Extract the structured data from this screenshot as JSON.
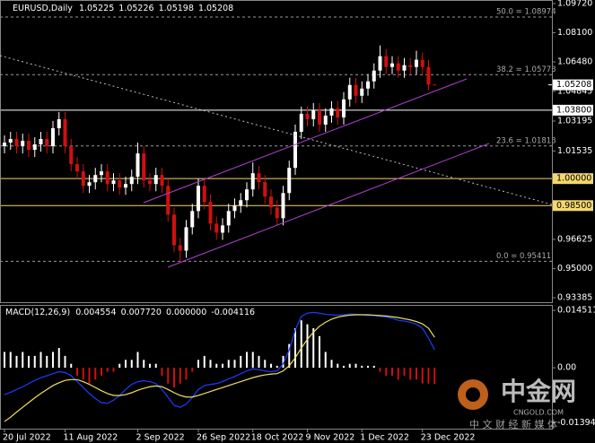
{
  "chart_data": [
    {
      "type": "candlestick",
      "symbol": "EURUSD,Daily",
      "up_color": "#ffffff",
      "down_color": "#d01010",
      "ylim": [
        0.93136,
        1.09919
      ],
      "yticks": [
        {
          "value": 1.0972,
          "label": "1.09720"
        },
        {
          "value": 1.081,
          "label": "1.08100"
        },
        {
          "value": 1.0648,
          "label": "1.06480"
        },
        1.04845,
        1.03195,
        1.01535,
        0.96625,
        {
          "value": 0.95,
          "label": "0.95000"
        },
        0.93385
      ],
      "xticks": [
        {
          "value": 0,
          "label": "20 Jul 2022"
        },
        {
          "value": 10,
          "label": "11 Aug 2022"
        },
        {
          "value": 22,
          "label": "2 Sep 2022"
        },
        {
          "value": 32,
          "label": "26 Sep 2022"
        },
        {
          "value": 41,
          "label": "18 Oct 2022"
        },
        {
          "value": 50,
          "label": "9 Nov 2022"
        },
        {
          "value": 59,
          "label": "1 Dec 2022"
        },
        {
          "value": 69,
          "label": "23 Dec 2022"
        }
      ],
      "open": [
        1.018,
        1.02,
        1.022,
        1.018,
        1.021,
        1.016,
        1.019,
        1.022,
        1.018,
        1.028,
        1.033,
        1.018,
        1.008,
        1.004,
        0.996,
        0.998,
        1.002,
        1.004,
        0.997,
        0.999,
        0.995,
        0.997,
        1.001,
        1.014,
        0.999,
        0.997,
        1.002,
        0.996,
        0.98,
        0.963,
        0.96,
        0.973,
        0.982,
        0.996,
        0.987,
        0.975,
        0.97,
        0.974,
        0.982,
        0.985,
        0.988,
        0.994,
        1.003,
        0.998,
        0.99,
        0.984,
        0.978,
        0.992,
        1.006,
        1.026,
        1.036,
        1.033,
        1.038,
        1.03,
        1.035,
        1.039,
        1.034,
        1.044,
        1.052,
        1.046,
        1.05,
        1.054,
        1.06,
        1.068,
        1.062,
        1.064,
        1.06,
        1.063,
        1.062,
        1.066,
        1.062,
        1.05225
      ],
      "high": [
        1.024,
        1.026,
        1.026,
        1.025,
        1.025,
        1.023,
        1.026,
        1.026,
        1.032,
        1.037,
        1.037,
        1.022,
        1.012,
        1.008,
        1.002,
        1.006,
        1.008,
        1.008,
        1.003,
        1.003,
        1.001,
        1.005,
        1.02,
        1.018,
        1.003,
        1.006,
        1.006,
        1.0,
        0.984,
        0.967,
        0.977,
        0.986,
        1.0,
        1.0,
        0.991,
        0.979,
        0.978,
        0.986,
        0.989,
        0.992,
        0.998,
        1.009,
        1.007,
        1.002,
        0.994,
        0.988,
        0.996,
        1.01,
        1.03,
        1.04,
        1.04,
        1.042,
        1.042,
        1.039,
        1.043,
        1.043,
        1.048,
        1.056,
        1.056,
        1.054,
        1.058,
        1.064,
        1.074,
        1.072,
        1.068,
        1.068,
        1.067,
        1.067,
        1.071,
        1.07,
        1.066,
        1.05226
      ],
      "low": [
        1.014,
        1.016,
        1.014,
        1.014,
        1.012,
        1.012,
        1.015,
        1.014,
        1.014,
        1.024,
        1.014,
        1.004,
        1.0,
        0.992,
        0.992,
        0.994,
        0.998,
        0.993,
        0.993,
        0.991,
        0.991,
        0.993,
        0.997,
        0.995,
        0.993,
        0.993,
        0.992,
        0.976,
        0.959,
        0.954,
        0.956,
        0.969,
        0.978,
        0.983,
        0.971,
        0.966,
        0.966,
        0.97,
        0.978,
        0.981,
        0.984,
        0.99,
        0.994,
        0.986,
        0.98,
        0.974,
        0.974,
        0.988,
        1.002,
        1.022,
        1.029,
        1.029,
        1.026,
        1.026,
        1.031,
        1.03,
        1.03,
        1.04,
        1.042,
        1.042,
        1.046,
        1.05,
        1.056,
        1.058,
        1.058,
        1.056,
        1.056,
        1.058,
        1.058,
        1.058,
        1.049,
        1.05198
      ],
      "close": [
        1.02,
        1.022,
        1.018,
        1.021,
        1.016,
        1.019,
        1.022,
        1.018,
        1.028,
        1.033,
        1.018,
        1.008,
        1.004,
        0.996,
        0.998,
        1.002,
        1.004,
        0.997,
        0.999,
        0.995,
        0.997,
        1.001,
        1.014,
        0.999,
        0.997,
        1.002,
        0.996,
        0.98,
        0.963,
        0.96,
        0.973,
        0.982,
        0.996,
        0.987,
        0.975,
        0.97,
        0.974,
        0.982,
        0.985,
        0.988,
        0.994,
        1.003,
        0.998,
        0.99,
        0.984,
        0.978,
        0.992,
        1.006,
        1.026,
        1.036,
        1.033,
        1.038,
        1.03,
        1.035,
        1.039,
        1.034,
        1.044,
        1.052,
        1.046,
        1.05,
        1.054,
        1.06,
        1.068,
        1.062,
        1.064,
        1.06,
        1.063,
        1.062,
        1.066,
        1.062,
        1.05225,
        1.05208
      ],
      "fib_levels": [
        {
          "value": 1.08974,
          "label": "50.0 = 1.08974"
        },
        {
          "value": 1.05773,
          "label": "38.2 = 1.05773"
        },
        {
          "value": 1.01813,
          "label": "23.6 = 1.01813"
        },
        {
          "value": 0.95411,
          "label": "0.0 = 0.95411"
        }
      ],
      "price_lines": [
        {
          "value": 1.038,
          "label": "1.03800",
          "color": "#ffffff"
        },
        {
          "value": 1,
          "label": "1.00000",
          "color": "#f5d76e"
        },
        {
          "value": 0.985,
          "label": "0.98500",
          "color": "#f5d76e"
        }
      ],
      "current_price": {
        "value": 1.05208,
        "label": "1.05208"
      },
      "watermark": {
        "title": "中金网",
        "site": "CNGOLD.COM",
        "tagline": "中 文 财 经 新 媒 体"
      }
    },
    {
      "type": "macd",
      "name": "MACD(12,26,9)",
      "header_values": [
        0.004554,
        {
          "value": 0.00772,
          "label": "0.007720"
        },
        {
          "value": 0,
          "label": "0.000000"
        },
        -0.004116
      ],
      "ylim": [
        -0.0154,
        0.0159
      ],
      "yticks": [
        0.014511,
        {
          "value": 0,
          "label": "0.00"
        },
        -0.013947
      ],
      "up_color": "#ffffff",
      "down_color": "#d01010",
      "histogram": [
        0.004,
        0.004,
        0.003,
        0.004,
        0.003,
        0.003,
        0.004,
        0.003,
        0.004,
        0.005,
        0.003,
        0.001,
        -0.002,
        -0.003,
        -0.004,
        -0.003,
        -0.002,
        -0.001,
        -0.001,
        0.001,
        0.002,
        0.002,
        0.004,
        0.002,
        0.001,
        0.001,
        -0.002,
        -0.004,
        -0.005,
        -0.004,
        -0.003,
        -0.001,
        0.002,
        0.003,
        0.002,
        0.001,
        0.001,
        0.002,
        0.002,
        0.003,
        0.004,
        0.004,
        0.003,
        0.002,
        0.001,
        0.0005,
        0.003,
        0.006,
        0.01,
        0.012,
        0.011,
        0.01,
        0.008,
        0.004,
        0.002,
        0.001,
        0.0005,
        0.001,
        0.001,
        0.0005,
        0.0005,
        0.0005,
        -0.001,
        -0.002,
        -0.002,
        -0.003,
        -0.002,
        -0.003,
        -0.003,
        -0.004,
        -0.004,
        -0.004116
      ],
      "series": [
        {
          "name": "MACD",
          "color": "#1e3cff",
          "values": [
            -0.0068,
            -0.0062,
            -0.0055,
            -0.0048,
            -0.004,
            -0.0032,
            -0.0025,
            -0.002,
            -0.0015,
            -0.001,
            -0.0012,
            -0.002,
            -0.0035,
            -0.005,
            -0.0065,
            -0.0078,
            -0.0088,
            -0.009,
            -0.0082,
            -0.007,
            -0.0055,
            -0.0042,
            -0.0035,
            -0.0033,
            -0.0035,
            -0.004,
            -0.0055,
            -0.0075,
            -0.0095,
            -0.01,
            -0.0092,
            -0.0075,
            -0.0055,
            -0.0045,
            -0.0042,
            -0.004,
            -0.0035,
            -0.0028,
            -0.0022,
            -0.0015,
            -0.0008,
            -0.0003,
            -0.0005,
            -0.0008,
            -0.001,
            -0.0008,
            0.001,
            0.0045,
            0.0095,
            0.013,
            0.0138,
            0.014,
            0.0138,
            0.0135,
            0.0134,
            0.0133,
            0.0134,
            0.0136,
            0.0135,
            0.0134,
            0.0132,
            0.0132,
            0.013,
            0.0128,
            0.0125,
            0.012,
            0.0118,
            0.0115,
            0.011,
            0.01,
            0.0075,
            0.004554
          ]
        },
        {
          "name": "Signal",
          "color": "#f0e060",
          "values": [
            -0.0136,
            -0.0125,
            -0.0112,
            -0.01,
            -0.0088,
            -0.0076,
            -0.0065,
            -0.0055,
            -0.0045,
            -0.0038,
            -0.0032,
            -0.003,
            -0.003,
            -0.0035,
            -0.0042,
            -0.005,
            -0.0058,
            -0.0065,
            -0.007,
            -0.007,
            -0.0068,
            -0.0063,
            -0.0057,
            -0.0052,
            -0.0048,
            -0.0046,
            -0.0048,
            -0.0055,
            -0.0063,
            -0.007,
            -0.0074,
            -0.0074,
            -0.007,
            -0.0065,
            -0.006,
            -0.0055,
            -0.005,
            -0.0045,
            -0.004,
            -0.0035,
            -0.003,
            -0.0025,
            -0.0021,
            -0.0018,
            -0.0016,
            -0.0015,
            -0.0008,
            0.0005,
            0.0025,
            0.005,
            0.0072,
            0.009,
            0.0105,
            0.0115,
            0.0123,
            0.0128,
            0.0131,
            0.0133,
            0.0134,
            0.0134,
            0.0134,
            0.0133,
            0.0132,
            0.0131,
            0.0129,
            0.0127,
            0.0124,
            0.0121,
            0.0117,
            0.0111,
            0.01,
            0.00772
          ]
        }
      ]
    }
  ]
}
